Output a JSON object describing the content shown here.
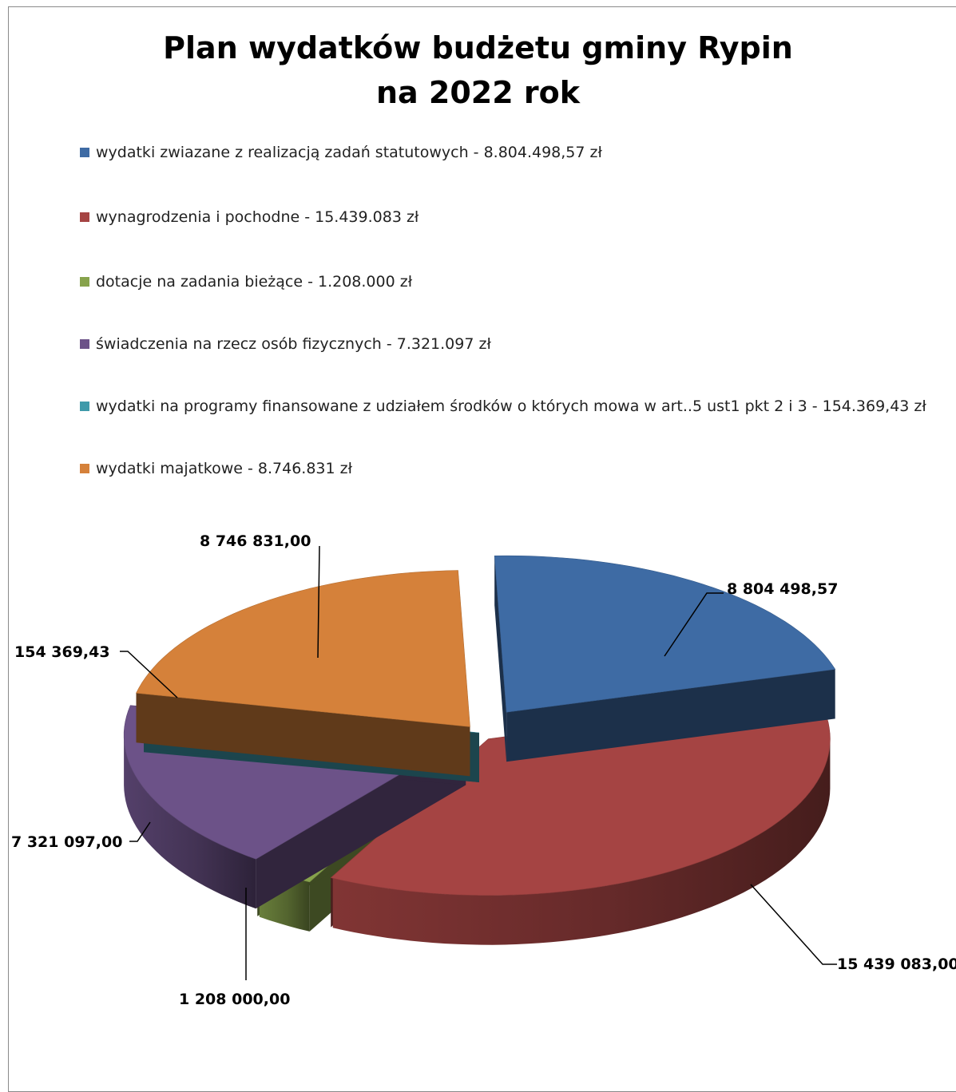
{
  "chart_data": {
    "type": "pie",
    "title": [
      "Plan wydatków budżetu gminy Rypin",
      "na 2022 rok"
    ],
    "legend_position": "top",
    "series": [
      {
        "legend": "wydatki zwiazane z realizacją zadań statutowych - 8.804.498,57 zł",
        "value": 8804498.57,
        "label": "8 804 498,57",
        "color": "#3e6ba4"
      },
      {
        "legend": "wynagrodzenia i pochodne - 15.439.083 zł",
        "value": 15439083.0,
        "label": "15 439 083,00",
        "color": "#a54443"
      },
      {
        "legend": "dotacje na zadania bieżące - 1.208.000 zł",
        "value": 1208000.0,
        "label": "1 208 000,00",
        "color": "#87a34c"
      },
      {
        "legend": "świadczenia na rzecz osób fizycznych - 7.321.097 zł",
        "value": 7321097.0,
        "label": "7 321 097,00",
        "color": "#6c5288"
      },
      {
        "legend": "wydatki na programy finansowane z udziałem środków o których mowa w art..5 ust1 pkt 2 i 3 - 154.369,43 zł",
        "value": 154369.43,
        "label": "154 369,43",
        "color": "#3f9aaa"
      },
      {
        "legend": "wydatki majatkowe - 8.746.831 zł",
        "value": 8746831.0,
        "label": "8 746 831,00",
        "color": "#d5813a"
      }
    ]
  }
}
